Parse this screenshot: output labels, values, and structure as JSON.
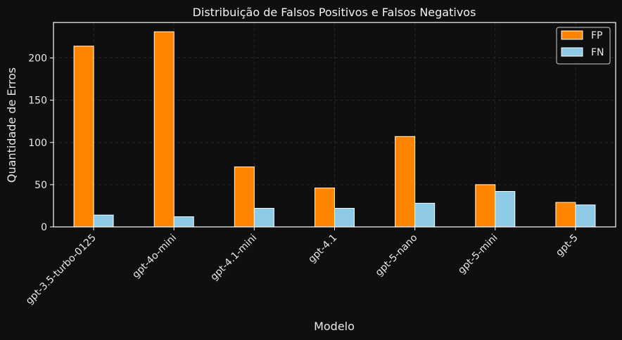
{
  "chart_data": {
    "type": "bar",
    "title": "Distribuição de Falsos Positivos e Falsos Negativos",
    "xlabel": "Modelo",
    "ylabel": "Quantidade de Erros",
    "categories": [
      "gpt-3.5-turbo-0125",
      "gpt-4o-mini",
      "gpt-4.1-mini",
      "gpt-4.1",
      "gpt-5-nano",
      "gpt-5-mini",
      "gpt-5"
    ],
    "series": [
      {
        "name": "FP",
        "color": "#ff8400",
        "values": [
          214,
          231,
          71,
          46,
          107,
          50,
          29
        ]
      },
      {
        "name": "FN",
        "color": "#8ecae6",
        "values": [
          14,
          12,
          22,
          22,
          28,
          42,
          26
        ]
      }
    ],
    "ylim": [
      0,
      242
    ],
    "yticks": [
      0,
      50,
      100,
      150,
      200
    ],
    "grid": true,
    "legend_position": "top-right"
  },
  "colors": {
    "background": "#0f0f0f",
    "axis": "#ffffff",
    "grid": "#3a3a3a",
    "text": "#e8e8e8"
  }
}
